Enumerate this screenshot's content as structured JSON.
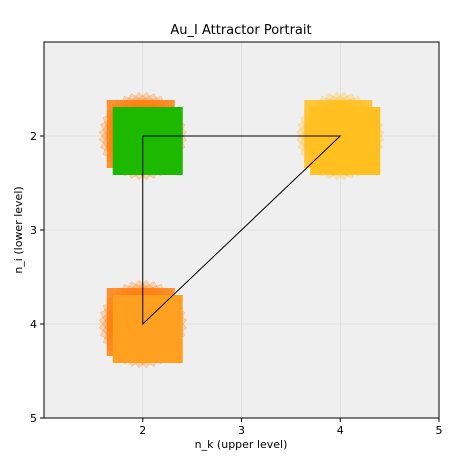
{
  "chart_data": {
    "type": "scatter",
    "title": "Au_I Attractor Portrait",
    "xlabel": "n_k (upper level)",
    "ylabel": "n_i (lower level)",
    "xlim": [
      1,
      5
    ],
    "ylim": [
      5,
      1
    ],
    "y_inverted": true,
    "xticks": [
      "2",
      "3",
      "4",
      "5"
    ],
    "yticks": [
      "2",
      "3",
      "4",
      "5"
    ],
    "grid": true,
    "background": "#efefef",
    "nodes": [
      {
        "x": 2,
        "y": 2,
        "color": "#1db800",
        "accent": "#ff7f0e"
      },
      {
        "x": 4,
        "y": 2,
        "color": "#ffc020",
        "accent": "#ffc020"
      },
      {
        "x": 2,
        "y": 4,
        "color": "#ffa020",
        "accent": "#ff7f0e"
      }
    ],
    "path": [
      {
        "x": 2,
        "y": 2
      },
      {
        "x": 4,
        "y": 2
      },
      {
        "x": 2,
        "y": 4
      },
      {
        "x": 2,
        "y": 2
      }
    ]
  }
}
